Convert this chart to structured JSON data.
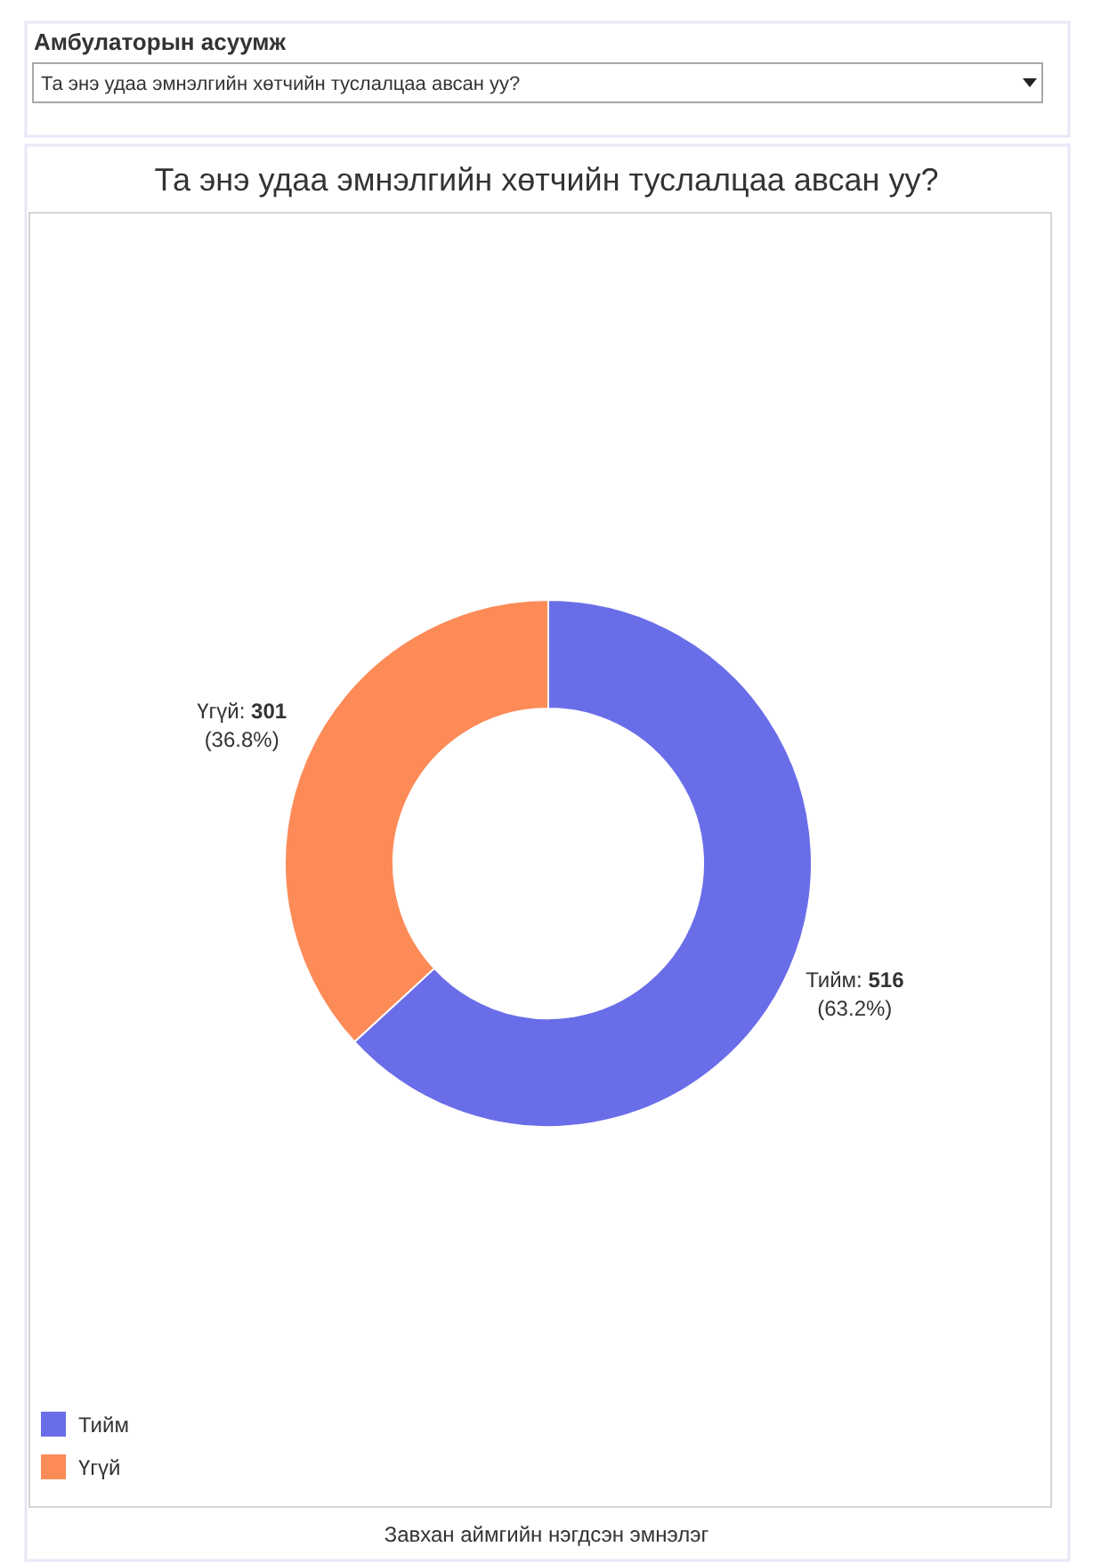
{
  "chart_data": {
    "type": "donut",
    "title": "Та энэ удаа эмнэлгийн хөтчийн туслалцаа авсан уу?",
    "categories": [
      "Тийм",
      "Үгүй"
    ],
    "values": [
      516,
      301
    ],
    "colors": [
      "#6a6de8",
      "#fd8b58"
    ],
    "value_labels": [
      "Тийм: 516\n(63.2%)",
      "Үгүй: 301\n(36.8%)"
    ],
    "legend": "bottom left",
    "annotations": [
      "Амбулаторын асуумж",
      "Та энэ удаа эмнэлгийн хөтчийн туслалцаа авсан уу?",
      "Завхан аймгийн нэгдсэн эмнэлэг"
    ]
  }
}
